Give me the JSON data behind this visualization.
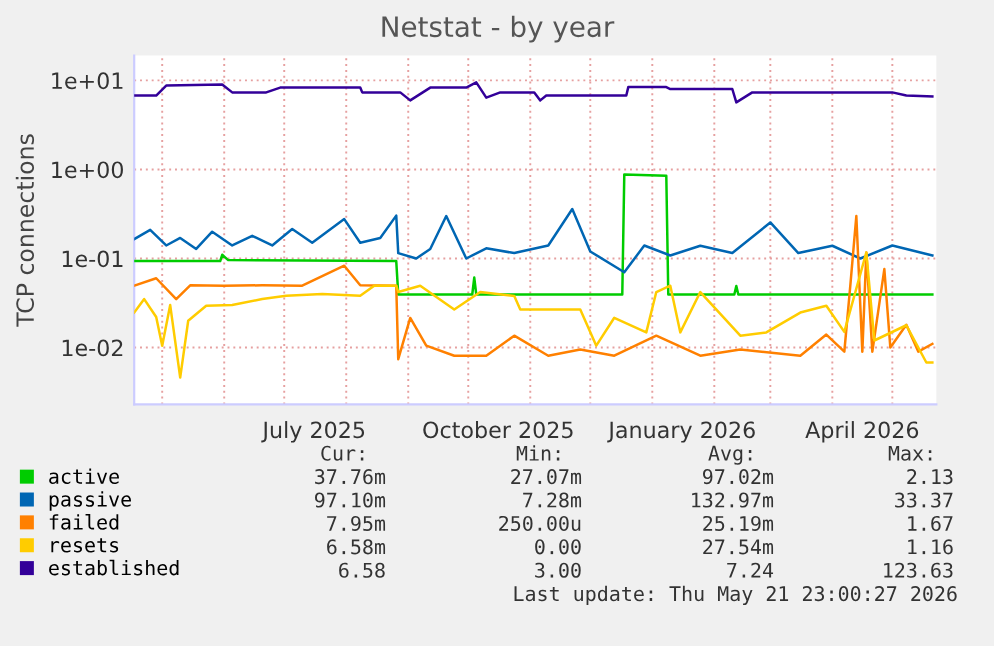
{
  "chart_data": {
    "type": "line",
    "title": "Netstat - by year",
    "ylabel": "TCP connections",
    "log": "y",
    "ylim": [
      0.0023,
      19
    ],
    "yticks": [
      {
        "value": 0.01,
        "label": "1e-02"
      },
      {
        "value": 0.1,
        "label": "1e-01"
      },
      {
        "value": 1,
        "label": "1e+00"
      },
      {
        "value": 10,
        "label": "1e+01"
      }
    ],
    "xlim": [
      "2025-04-17",
      "2026-05-23"
    ],
    "xticks": [
      {
        "value": "2025-05-01",
        "label": null
      },
      {
        "value": "2025-06-01",
        "label": null
      },
      {
        "value": "2025-07-01",
        "label": null
      },
      {
        "value": "2025-07-16",
        "label": "July 2025"
      },
      {
        "value": "2025-08-01",
        "label": null
      },
      {
        "value": "2025-09-01",
        "label": null
      },
      {
        "value": "2025-10-01",
        "label": null
      },
      {
        "value": "2025-10-16",
        "label": "October 2025"
      },
      {
        "value": "2025-11-01",
        "label": null
      },
      {
        "value": "2025-12-01",
        "label": null
      },
      {
        "value": "2026-01-01",
        "label": null
      },
      {
        "value": "2026-01-16",
        "label": "January 2026"
      },
      {
        "value": "2026-02-01",
        "label": null
      },
      {
        "value": "2026-03-01",
        "label": null
      },
      {
        "value": "2026-04-01",
        "label": null
      },
      {
        "value": "2026-04-16",
        "label": "April 2026"
      },
      {
        "value": "2026-05-01",
        "label": null
      }
    ],
    "grid": true,
    "legend": "bottom",
    "marker": "none",
    "line_style": "solid",
    "series": [
      {
        "name": "active",
        "color": "#00cc00",
        "x": [
          "2025-04-17",
          "2025-05-30",
          "2025-05-31",
          "2025-06-03",
          "2025-08-26",
          "2025-08-27",
          "2025-10-03",
          "2025-10-04",
          "2025-10-05",
          "2025-12-17",
          "2025-12-18",
          "2026-01-08",
          "2026-01-09",
          "2026-02-11",
          "2026-02-12",
          "2026-02-13",
          "2026-05-21"
        ],
        "values": [
          0.0935,
          0.0935,
          0.11,
          0.096,
          0.0935,
          0.0394,
          0.0394,
          0.061,
          0.0394,
          0.0394,
          0.88,
          0.85,
          0.0394,
          0.0394,
          0.049,
          0.0394,
          0.0394
        ]
      },
      {
        "name": "passive",
        "color": "#0066b3",
        "x": [
          "2025-04-17",
          "2025-04-25",
          "2025-05-03",
          "2025-05-10",
          "2025-05-18",
          "2025-05-26",
          "2025-06-05",
          "2025-06-15",
          "2025-06-25",
          "2025-07-05",
          "2025-07-15",
          "2025-07-31",
          "2025-08-08",
          "2025-08-18",
          "2025-08-26",
          "2025-08-27",
          "2025-09-05",
          "2025-09-12",
          "2025-09-20",
          "2025-09-30",
          "2025-10-10",
          "2025-10-24",
          "2025-11-10",
          "2025-11-22",
          "2025-12-01",
          "2025-12-18",
          "2025-12-28",
          "2026-01-10",
          "2026-01-25",
          "2026-02-10",
          "2026-03-01",
          "2026-03-15",
          "2026-04-01",
          "2026-04-15",
          "2026-05-01",
          "2026-05-21"
        ],
        "values": [
          0.165,
          0.21,
          0.14,
          0.17,
          0.128,
          0.2,
          0.14,
          0.18,
          0.14,
          0.214,
          0.15,
          0.277,
          0.15,
          0.17,
          0.303,
          0.115,
          0.1,
          0.128,
          0.3,
          0.1,
          0.13,
          0.115,
          0.14,
          0.359,
          0.12,
          0.07,
          0.14,
          0.108,
          0.139,
          0.115,
          0.254,
          0.115,
          0.139,
          0.1,
          0.14,
          0.108
        ]
      },
      {
        "name": "failed",
        "color": "#ff8000",
        "x": [
          "2025-04-17",
          "2025-04-28",
          "2025-05-08",
          "2025-05-15",
          "2025-06-01",
          "2025-06-20",
          "2025-07-10",
          "2025-07-31",
          "2025-08-08",
          "2025-08-26",
          "2025-08-27",
          "2025-09-02",
          "2025-09-10",
          "2025-09-24",
          "2025-10-10",
          "2025-10-24",
          "2025-11-10",
          "2025-11-26",
          "2025-12-13",
          "2026-01-03",
          "2026-01-25",
          "2026-02-14",
          "2026-03-16",
          "2026-03-29",
          "2026-04-07",
          "2026-04-10",
          "2026-04-13",
          "2026-04-16",
          "2026-04-18",
          "2026-04-21",
          "2026-04-27",
          "2026-04-30",
          "2026-05-08",
          "2026-05-14",
          "2026-05-21"
        ],
        "values": [
          0.0495,
          0.06,
          0.035,
          0.05,
          0.0495,
          0.05,
          0.0495,
          0.083,
          0.05,
          0.0495,
          0.0074,
          0.0215,
          0.0105,
          0.0081,
          0.0081,
          0.0136,
          0.0081,
          0.0095,
          0.0081,
          0.0136,
          0.0081,
          0.0095,
          0.0081,
          0.014,
          0.009,
          0.05,
          0.3,
          0.009,
          0.117,
          0.009,
          0.076,
          0.01,
          0.018,
          0.009,
          0.011
        ]
      },
      {
        "name": "resets",
        "color": "#ffcc00",
        "x": [
          "2025-04-17",
          "2025-04-22",
          "2025-04-28",
          "2025-05-01",
          "2025-05-05",
          "2025-05-10",
          "2025-05-14",
          "2025-05-23",
          "2025-06-05",
          "2025-06-20",
          "2025-07-02",
          "2025-07-20",
          "2025-08-08",
          "2025-08-15",
          "2025-08-26",
          "2025-08-27",
          "2025-09-07",
          "2025-09-24",
          "2025-10-07",
          "2025-10-24",
          "2025-10-27",
          "2025-11-26",
          "2025-12-04",
          "2025-12-13",
          "2025-12-29",
          "2026-01-03",
          "2026-01-10",
          "2026-01-15",
          "2026-01-25",
          "2026-02-14",
          "2026-02-27",
          "2026-03-16",
          "2026-03-29",
          "2026-04-07",
          "2026-04-18",
          "2026-04-22",
          "2026-05-08",
          "2026-05-18",
          "2026-05-21"
        ],
        "values": [
          0.0247,
          0.035,
          0.022,
          0.0105,
          0.03,
          0.0046,
          0.02,
          0.0295,
          0.03,
          0.035,
          0.0382,
          0.04,
          0.0382,
          0.0495,
          0.0495,
          0.042,
          0.0495,
          0.0268,
          0.042,
          0.038,
          0.0268,
          0.0268,
          0.0105,
          0.0216,
          0.0148,
          0.042,
          0.0495,
          0.0148,
          0.042,
          0.0136,
          0.0148,
          0.0247,
          0.0295,
          0.015,
          0.117,
          0.012,
          0.0178,
          0.0068,
          0.0068
        ]
      },
      {
        "name": "established",
        "color": "#330099",
        "x": [
          "2025-04-17",
          "2025-04-28",
          "2025-05-03",
          "2025-05-31",
          "2025-06-05",
          "2025-06-22",
          "2025-06-29",
          "2025-08-08",
          "2025-08-09",
          "2025-08-28",
          "2025-09-02",
          "2025-09-12",
          "2025-09-30",
          "2025-10-05",
          "2025-10-10",
          "2025-10-17",
          "2025-11-03",
          "2025-11-06",
          "2025-11-09",
          "2025-12-19",
          "2025-12-20",
          "2026-01-08",
          "2026-01-10",
          "2026-02-10",
          "2026-02-12",
          "2026-02-20",
          "2026-05-01",
          "2026-05-08",
          "2026-05-21"
        ],
        "values": [
          6.75,
          6.75,
          8.74,
          9.0,
          7.33,
          7.33,
          8.3,
          8.3,
          7.33,
          7.33,
          5.96,
          8.3,
          8.3,
          9.5,
          6.4,
          7.33,
          7.33,
          5.96,
          6.75,
          6.75,
          8.4,
          8.4,
          8.0,
          8.0,
          5.66,
          7.33,
          7.33,
          6.75,
          6.58
        ]
      }
    ],
    "annotations": [
      "Cur:",
      "Min:",
      "Avg:",
      "Max:",
      "37.76m",
      "27.07m",
      "97.02m",
      "2.13",
      "97.10m",
      "7.28m",
      "132.97m",
      "33.37",
      "7.95m",
      "250.00u",
      "25.19m",
      "1.67",
      "6.58m",
      "0.00",
      "27.54m",
      "1.16",
      "6.58",
      "3.00",
      "7.24",
      "123.63",
      "Last update: Thu May 21 23:00:27 2026"
    ]
  }
}
